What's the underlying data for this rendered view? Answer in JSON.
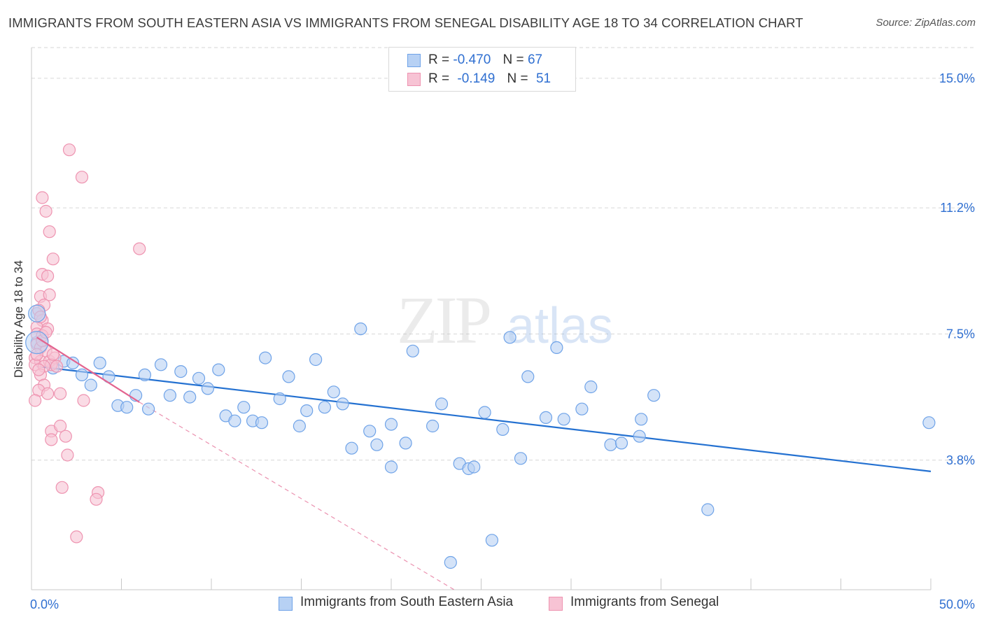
{
  "title": "IMMIGRANTS FROM SOUTH EASTERN ASIA VS IMMIGRANTS FROM SENEGAL DISABILITY AGE 18 TO 34 CORRELATION CHART",
  "source": "Source: ZipAtlas.com",
  "watermark": {
    "zip": "ZIP",
    "atlas": "atlas"
  },
  "legend_top": [
    {
      "r_label": "R =",
      "r_value": "-0.470",
      "n_label": "N =",
      "n_value": "67"
    },
    {
      "r_label": "R =",
      "r_value": "-0.149",
      "n_label": "N =",
      "n_value": "51"
    }
  ],
  "chart_data": {
    "type": "scatter",
    "title": "IMMIGRANTS FROM SOUTH EASTERN ASIA VS IMMIGRANTS FROM SENEGAL DISABILITY AGE 18 TO 34 CORRELATION CHART",
    "xlabel": "",
    "ylabel": "Disability Age 18 to 34",
    "xlim": [
      0,
      50
    ],
    "ylim": [
      0,
      15.9
    ],
    "x_tick_labels": [
      "0.0%",
      "50.0%"
    ],
    "y_ticks": [
      3.8,
      7.5,
      11.2,
      15.0
    ],
    "y_tick_labels": [
      "3.8%",
      "7.5%",
      "11.2%",
      "15.0%"
    ],
    "grid": true,
    "legend_position": "bottom-center",
    "series": [
      {
        "name": "Immigrants from South Eastern Asia",
        "color": "#6fa3e8",
        "fill": "#b7d1f4",
        "trend_color": "#2471d1",
        "trend": {
          "x": [
            0.3,
            50.0
          ],
          "y": [
            6.55,
            3.47
          ]
        },
        "points": [
          [
            0.3,
            8.1
          ],
          [
            0.3,
            7.25
          ],
          [
            1.2,
            6.5
          ],
          [
            1.8,
            6.7
          ],
          [
            2.3,
            6.65
          ],
          [
            2.8,
            6.3
          ],
          [
            3.3,
            6.0
          ],
          [
            3.8,
            6.65
          ],
          [
            4.3,
            6.25
          ],
          [
            4.8,
            5.4
          ],
          [
            5.3,
            5.35
          ],
          [
            5.8,
            5.7
          ],
          [
            6.5,
            5.3
          ],
          [
            6.3,
            6.3
          ],
          [
            7.2,
            6.6
          ],
          [
            7.7,
            5.7
          ],
          [
            8.3,
            6.4
          ],
          [
            8.8,
            5.65
          ],
          [
            9.3,
            6.2
          ],
          [
            9.8,
            5.9
          ],
          [
            10.4,
            6.45
          ],
          [
            10.8,
            5.1
          ],
          [
            11.3,
            4.95
          ],
          [
            11.8,
            5.35
          ],
          [
            12.3,
            4.95
          ],
          [
            12.8,
            4.9
          ],
          [
            13.0,
            6.8
          ],
          [
            13.8,
            5.6
          ],
          [
            14.3,
            6.25
          ],
          [
            14.9,
            4.8
          ],
          [
            15.3,
            5.25
          ],
          [
            15.8,
            6.75
          ],
          [
            16.3,
            5.35
          ],
          [
            16.8,
            5.8
          ],
          [
            17.3,
            5.45
          ],
          [
            17.8,
            4.15
          ],
          [
            18.3,
            7.65
          ],
          [
            18.8,
            4.65
          ],
          [
            19.2,
            4.25
          ],
          [
            20.0,
            3.6
          ],
          [
            20.0,
            4.85
          ],
          [
            20.8,
            4.3
          ],
          [
            21.2,
            7.0
          ],
          [
            22.3,
            4.8
          ],
          [
            22.8,
            5.45
          ],
          [
            23.8,
            3.7
          ],
          [
            24.3,
            3.55
          ],
          [
            24.6,
            3.6
          ],
          [
            25.2,
            5.2
          ],
          [
            25.6,
            1.45
          ],
          [
            26.2,
            4.7
          ],
          [
            26.6,
            7.4
          ],
          [
            27.2,
            3.85
          ],
          [
            27.6,
            6.25
          ],
          [
            28.6,
            5.05
          ],
          [
            29.2,
            7.1
          ],
          [
            29.6,
            5.0
          ],
          [
            30.6,
            5.3
          ],
          [
            31.1,
            5.95
          ],
          [
            32.2,
            4.25
          ],
          [
            32.8,
            4.3
          ],
          [
            33.8,
            4.5
          ],
          [
            33.9,
            5.0
          ],
          [
            34.6,
            5.7
          ],
          [
            37.6,
            2.35
          ],
          [
            49.9,
            4.9
          ],
          [
            23.3,
            0.8
          ]
        ]
      },
      {
        "name": "Immigrants from Senegal",
        "color": "#ee93b0",
        "fill": "#f7c3d4",
        "trend_color": "#e3648f",
        "trend": {
          "x": [
            0.3,
            6.0
          ],
          "y": [
            7.4,
            5.5
          ]
        },
        "trend_extension": {
          "x": [
            6.0,
            23.5
          ],
          "y": [
            5.5,
            0.0
          ]
        },
        "points": [
          [
            2.1,
            12.9
          ],
          [
            2.8,
            12.1
          ],
          [
            0.6,
            11.5
          ],
          [
            0.8,
            11.1
          ],
          [
            1.0,
            10.5
          ],
          [
            6.0,
            10.0
          ],
          [
            1.2,
            9.7
          ],
          [
            0.6,
            9.25
          ],
          [
            0.9,
            9.2
          ],
          [
            0.5,
            8.6
          ],
          [
            1.0,
            8.65
          ],
          [
            0.7,
            8.35
          ],
          [
            0.4,
            8.2
          ],
          [
            0.6,
            7.9
          ],
          [
            0.3,
            7.7
          ],
          [
            0.9,
            7.65
          ],
          [
            0.3,
            7.5
          ],
          [
            0.6,
            7.45
          ],
          [
            0.3,
            7.2
          ],
          [
            0.5,
            7.1
          ],
          [
            0.8,
            7.0
          ],
          [
            0.2,
            6.8
          ],
          [
            0.5,
            6.7
          ],
          [
            1.0,
            6.7
          ],
          [
            1.3,
            6.8
          ],
          [
            1.1,
            6.6
          ],
          [
            1.4,
            6.55
          ],
          [
            0.2,
            6.6
          ],
          [
            0.7,
            6.55
          ],
          [
            0.5,
            6.3
          ],
          [
            0.7,
            6.0
          ],
          [
            0.4,
            5.85
          ],
          [
            0.9,
            5.75
          ],
          [
            1.6,
            5.75
          ],
          [
            0.2,
            5.55
          ],
          [
            2.9,
            5.55
          ],
          [
            1.1,
            4.65
          ],
          [
            1.6,
            4.8
          ],
          [
            1.1,
            4.4
          ],
          [
            1.9,
            4.5
          ],
          [
            2.0,
            3.95
          ],
          [
            1.7,
            3.0
          ],
          [
            3.7,
            2.85
          ],
          [
            3.6,
            2.65
          ],
          [
            2.5,
            1.55
          ],
          [
            0.3,
            6.9
          ],
          [
            0.6,
            7.3
          ],
          [
            0.4,
            6.45
          ],
          [
            1.2,
            6.9
          ],
          [
            0.8,
            7.55
          ],
          [
            0.5,
            8.0
          ]
        ]
      }
    ]
  }
}
